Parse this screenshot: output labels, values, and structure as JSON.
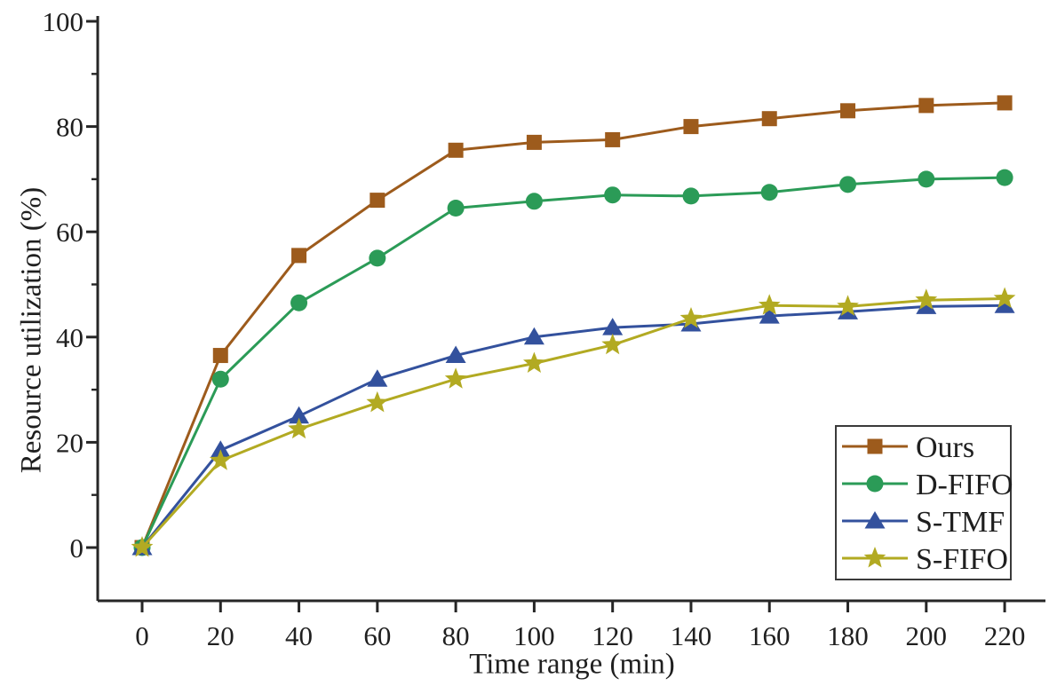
{
  "chart_data": {
    "type": "line",
    "title": "",
    "xlabel": "Time range (min)",
    "ylabel": "Resource utilization (%)",
    "x": [
      0,
      20,
      40,
      60,
      80,
      100,
      120,
      140,
      160,
      180,
      200,
      220
    ],
    "xticks": [
      0,
      20,
      40,
      60,
      80,
      100,
      120,
      140,
      160,
      180,
      200,
      220
    ],
    "yticks": [
      0,
      20,
      40,
      60,
      80,
      100
    ],
    "yminorticks": [
      10,
      30,
      50,
      70,
      90
    ],
    "xlim": [
      -11,
      231
    ],
    "ylim": [
      -10,
      100
    ],
    "grid": false,
    "legend_position": "lower right",
    "axis_color": "#262626",
    "series": [
      {
        "name": "Ours",
        "marker": "square",
        "color": "#9d5b1c",
        "values": [
          0,
          36.5,
          55.5,
          66,
          75.5,
          77,
          77.5,
          80,
          81.5,
          83,
          84,
          84.5
        ]
      },
      {
        "name": "D-FIFO",
        "marker": "circle",
        "color": "#2b9b57",
        "values": [
          0,
          32,
          46.5,
          55,
          64.5,
          65.8,
          67,
          66.8,
          67.5,
          69,
          70,
          70.3
        ]
      },
      {
        "name": "S-TMF",
        "marker": "triangle",
        "color": "#33519d",
        "values": [
          0,
          18.5,
          25,
          32,
          36.5,
          40,
          41.8,
          42.5,
          44,
          44.8,
          45.8,
          46
        ]
      },
      {
        "name": "S-FIFO",
        "marker": "star",
        "color": "#b2aa22",
        "values": [
          0,
          16.5,
          22.5,
          27.5,
          32,
          35,
          38.5,
          43.5,
          46,
          45.8,
          47,
          47.3
        ]
      }
    ]
  }
}
